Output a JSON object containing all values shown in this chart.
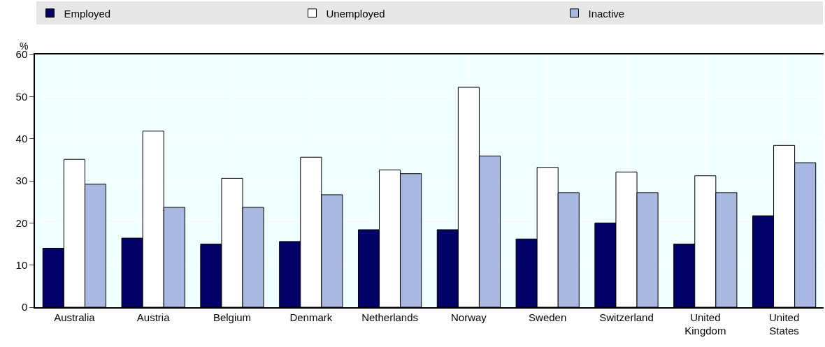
{
  "chart_data": {
    "type": "bar",
    "ylabel": "%",
    "categories": [
      "Australia",
      "Austria",
      "Belgium",
      "Denmark",
      "Netherlands",
      "Norway",
      "Sweden",
      "Switzerland",
      "United Kingdom",
      "United States"
    ],
    "series": [
      {
        "name": "Employed",
        "color": "#000066",
        "values": [
          14.0,
          16.4,
          15.0,
          15.6,
          18.4,
          18.4,
          16.2,
          20.0,
          15.0,
          21.7
        ]
      },
      {
        "name": "Unemployed",
        "color": "#ffffff",
        "values": [
          35.1,
          41.8,
          30.6,
          35.6,
          32.6,
          52.2,
          33.2,
          32.1,
          31.2,
          38.4
        ]
      },
      {
        "name": "Inactive",
        "color": "#a8b8e0",
        "values": [
          29.2,
          23.7,
          23.7,
          26.7,
          31.7,
          35.9,
          27.2,
          27.2,
          27.2,
          34.3
        ]
      }
    ],
    "ylim": [
      0,
      60
    ],
    "yticks": [
      0,
      10,
      20,
      30,
      40,
      50,
      60
    ],
    "grid": true,
    "legend": "top"
  }
}
